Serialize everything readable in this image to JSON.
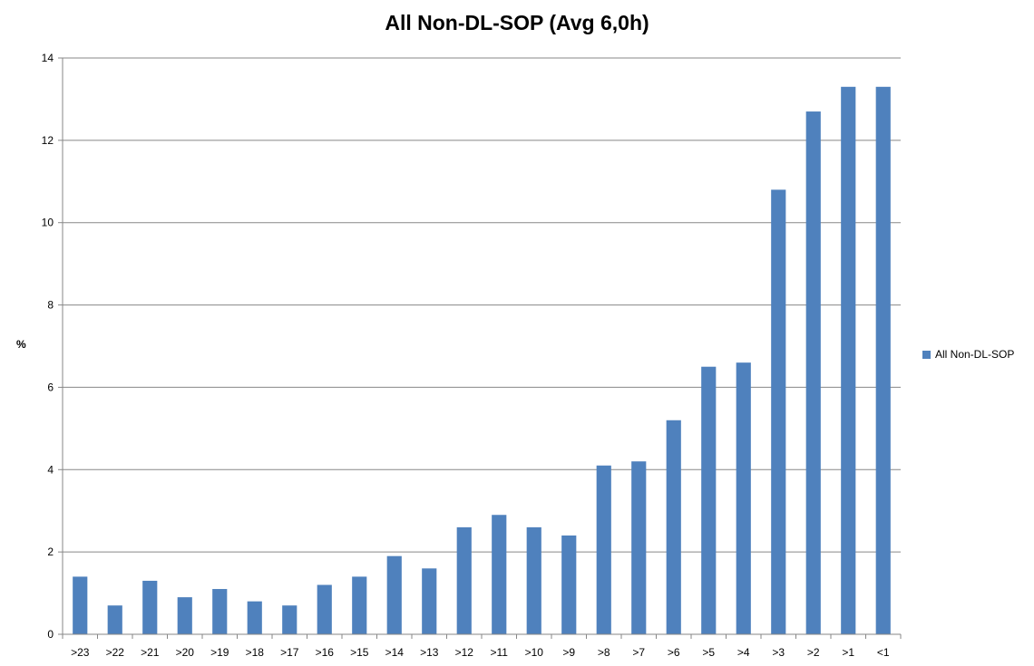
{
  "chart_data": {
    "type": "bar",
    "title": "All Non-DL-SOP  (Avg 6,0h)",
    "xlabel": "",
    "ylabel": "%",
    "ylim": [
      0,
      14
    ],
    "yticks": [
      "0",
      "2",
      "4",
      "6",
      "8",
      "10",
      "12",
      "14"
    ],
    "categories": [
      ">23",
      ">22",
      ">21",
      ">20",
      ">19",
      ">18",
      ">17",
      ">16",
      ">15",
      ">14",
      ">13",
      ">12",
      ">11",
      ">10",
      ">9",
      ">8",
      ">7",
      ">6",
      ">5",
      ">4",
      ">3",
      ">2",
      ">1",
      "<1"
    ],
    "series": [
      {
        "name": "All Non-DL-SOP",
        "color": "#4F81BD",
        "values": [
          1.4,
          0.7,
          1.3,
          0.9,
          1.1,
          0.8,
          0.7,
          1.2,
          1.4,
          1.9,
          1.6,
          2.6,
          2.9,
          2.6,
          2.4,
          4.1,
          4.2,
          5.2,
          6.5,
          6.6,
          10.8,
          12.7,
          13.3,
          13.3
        ]
      }
    ],
    "grid": true,
    "legend_position": "right"
  }
}
